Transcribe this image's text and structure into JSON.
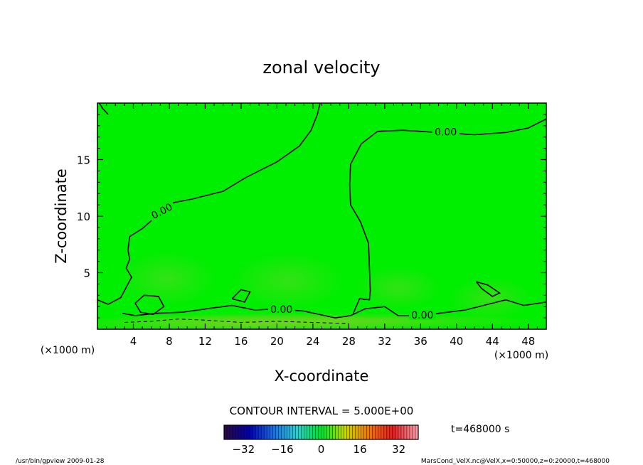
{
  "chart_data": {
    "type": "heatmap",
    "title": "zonal velocity",
    "xlabel": "X-coordinate",
    "ylabel": "Z-coordinate",
    "x_unit": "(×1000 m)",
    "xlim": [
      0,
      50
    ],
    "ylim": [
      0,
      20
    ],
    "x_ticks": [
      4,
      8,
      12,
      16,
      20,
      24,
      28,
      32,
      36,
      40,
      44,
      48
    ],
    "y_ticks": [
      5,
      10,
      15
    ],
    "field_color": "#00ee00",
    "contour_interval_text": "CONTOUR INTERVAL = 5.000E+00",
    "time_text": "t=468000 s",
    "contour_labels": [
      "0.00",
      "0.00",
      "0.00",
      "0.00"
    ],
    "colorbar": {
      "range": [
        -40,
        40
      ],
      "ticks": [
        -32,
        -16,
        0,
        16,
        32
      ],
      "colors": [
        "#2a0a4a",
        "#0000aa",
        "#1f6fd8",
        "#33cccc",
        "#00dd33",
        "#c8d800",
        "#e87a10",
        "#dd2020",
        "#ff9aa8"
      ]
    },
    "contours": [
      {
        "label": "0.00",
        "points": [
          [
            0.2,
            20
          ],
          [
            0.6,
            19.5
          ],
          [
            1.2,
            19
          ]
        ]
      },
      {
        "label": "0.00",
        "points": [
          [
            0,
            2.6
          ],
          [
            1.2,
            2.2
          ],
          [
            2.6,
            2.8
          ],
          [
            3.8,
            4.6
          ],
          [
            3.2,
            5.4
          ],
          [
            3.6,
            6.2
          ],
          [
            3.4,
            7
          ],
          [
            3.6,
            8.2
          ],
          [
            5,
            8.9
          ],
          [
            6,
            9.6
          ],
          [
            7,
            10.4
          ],
          [
            8.5,
            11.2
          ],
          [
            10.5,
            11.5
          ],
          [
            14,
            12.2
          ],
          [
            16.5,
            13.4
          ],
          [
            20,
            14.8
          ],
          [
            22.5,
            16.2
          ],
          [
            23.8,
            17.6
          ],
          [
            24.5,
            19
          ],
          [
            24.8,
            20
          ]
        ]
      },
      {
        "label": "0.00",
        "points": [
          [
            28.5,
            1.4
          ],
          [
            29.2,
            2.7
          ],
          [
            30.3,
            2.6
          ],
          [
            30.4,
            3.4
          ],
          [
            30.3,
            5.4
          ],
          [
            30.2,
            7.6
          ],
          [
            29.3,
            9.5
          ],
          [
            28.2,
            11
          ],
          [
            28.1,
            12.8
          ],
          [
            28.2,
            14.6
          ],
          [
            29.4,
            16.4
          ],
          [
            31.2,
            17.5
          ],
          [
            34,
            17.6
          ],
          [
            38,
            17.4
          ],
          [
            42,
            17.2
          ],
          [
            45.5,
            17.4
          ],
          [
            48,
            17.8
          ],
          [
            50,
            18.6
          ]
        ]
      },
      {
        "label": "0.00",
        "points": [
          [
            2.8,
            1.4
          ],
          [
            4.2,
            1.2
          ],
          [
            6.5,
            1.4
          ],
          [
            9.5,
            1.5
          ],
          [
            13,
            1.9
          ],
          [
            15,
            2.1
          ],
          [
            17.5,
            1.7
          ],
          [
            20,
            1.8
          ],
          [
            23,
            1.6
          ],
          [
            26.5,
            1.0
          ],
          [
            28.2,
            1.2
          ],
          [
            29.8,
            1.8
          ],
          [
            32,
            2.0
          ],
          [
            33.5,
            1.2
          ],
          [
            35.5,
            1.2
          ],
          [
            38,
            1.4
          ],
          [
            41,
            1.7
          ],
          [
            43.5,
            2.2
          ],
          [
            45.5,
            2.6
          ],
          [
            47.5,
            2.1
          ],
          [
            50,
            2.4
          ]
        ]
      },
      {
        "label": "",
        "points": [
          [
            4.2,
            2.3
          ],
          [
            5.2,
            3.0
          ],
          [
            6.8,
            2.9
          ],
          [
            7.4,
            2.0
          ],
          [
            6.2,
            1.3
          ],
          [
            4.8,
            1.5
          ],
          [
            4.2,
            2.3
          ]
        ]
      },
      {
        "label": "",
        "points": [
          [
            15,
            2.7
          ],
          [
            16,
            3.5
          ],
          [
            17,
            3.3
          ],
          [
            16.4,
            2.4
          ],
          [
            15,
            2.7
          ]
        ]
      },
      {
        "label": "",
        "points": [
          [
            42.2,
            4.2
          ],
          [
            43.5,
            3.9
          ],
          [
            44.8,
            3.2
          ],
          [
            44,
            2.9
          ],
          [
            42.8,
            3.6
          ],
          [
            42.2,
            4.2
          ]
        ]
      }
    ],
    "dashed_contours": [
      {
        "points": [
          [
            3,
            0.6
          ],
          [
            6,
            0.7
          ],
          [
            9,
            0.9
          ],
          [
            12,
            0.8
          ],
          [
            16,
            0.6
          ],
          [
            20,
            0.7
          ],
          [
            24,
            0.6
          ],
          [
            28,
            0.5
          ]
        ]
      }
    ]
  },
  "footer": {
    "left": "/usr/bin/gpview   2009-01-28",
    "right": "MarsCond_VelX.nc@VelX,x=0:50000,z=0:20000,t=468000"
  }
}
